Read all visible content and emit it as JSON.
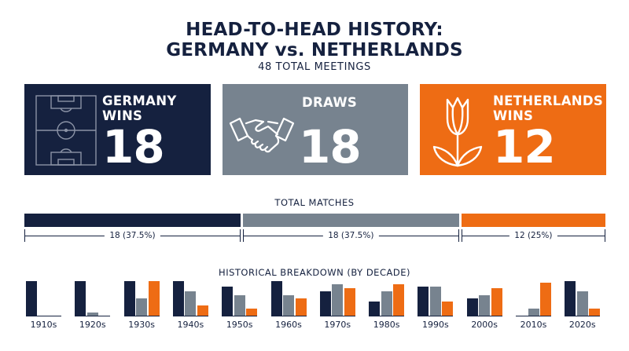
{
  "header": {
    "title_line1": "HEAD-TO-HEAD HISTORY:",
    "title_line2": "GERMANY vs. NETHERLANDS",
    "subtitle": "48 TOTAL MEETINGS"
  },
  "cards": {
    "germany": {
      "line1": "GERMANY",
      "line2": "WINS",
      "value": "18",
      "icon": "football-pitch-icon",
      "color": "#15213f"
    },
    "draws": {
      "line1": "DRAWS",
      "value": "18",
      "icon": "handshake-icon",
      "color": "#77838f"
    },
    "netherlands": {
      "line1": "NETHERLANDS",
      "line2": "WINS",
      "value": "12",
      "icon": "tulip-icon",
      "color": "#ee6c14"
    }
  },
  "colors": {
    "germany": "#15213f",
    "draws": "#77838f",
    "netherlands": "#ee6c14"
  },
  "chart_data": [
    {
      "type": "bar",
      "title": "TOTAL MATCHES",
      "orientation": "horizontal-stacked",
      "categories": [
        "Germany wins",
        "Draws",
        "Netherlands wins"
      ],
      "values": [
        18,
        18,
        12
      ],
      "labels": [
        "18 (37.5%)",
        "18 (37.5%)",
        "12 (25%)"
      ]
    },
    {
      "type": "bar",
      "title": "HISTORICAL BREAKDOWN (BY DECADE)",
      "categories": [
        "1910s",
        "1920s",
        "1930s",
        "1940s",
        "1950s",
        "1960s",
        "1970s",
        "1980s",
        "1990s",
        "2000s",
        "2010s",
        "2020s"
      ],
      "ylim": [
        0,
        1
      ],
      "series": [
        {
          "key": "germany",
          "color": "#15213f",
          "values": [
            1.0,
            1.0,
            1.0,
            1.0,
            0.85,
            1.0,
            0.7,
            0.4,
            0.85,
            0.5,
            0.0,
            1.0
          ]
        },
        {
          "key": "draws",
          "color": "#77838f",
          "values": [
            0.0,
            0.1,
            0.5,
            0.7,
            0.6,
            0.6,
            0.9,
            0.7,
            0.85,
            0.6,
            0.2,
            0.7
          ]
        },
        {
          "key": "netherlands",
          "color": "#ee6c14",
          "values": [
            0.0,
            0.0,
            1.0,
            0.3,
            0.2,
            0.5,
            0.8,
            0.9,
            0.4,
            0.8,
            0.95,
            0.2
          ]
        }
      ]
    }
  ]
}
